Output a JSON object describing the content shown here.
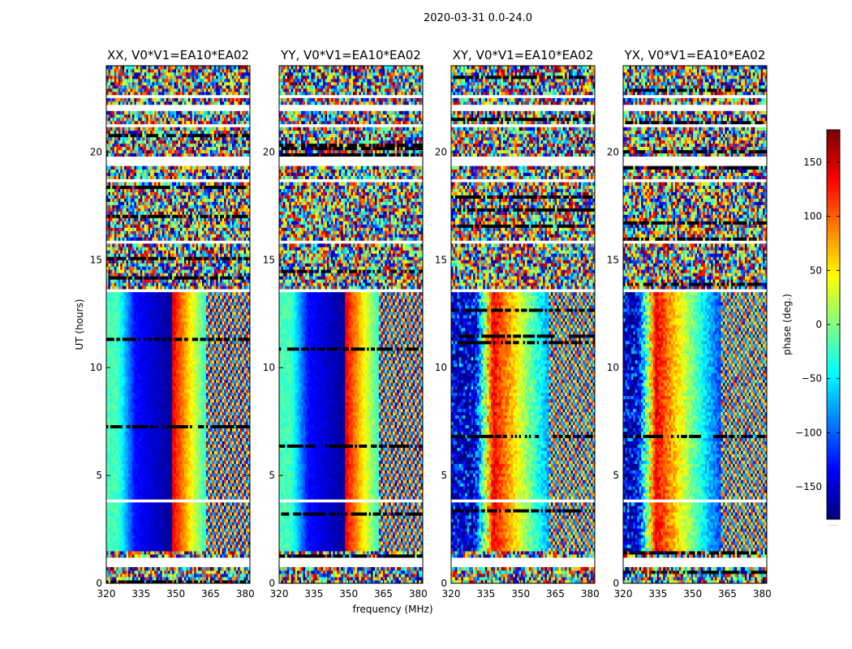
{
  "figure": {
    "suptitle": "2020-03-31 0.0-24.0",
    "xlabel": "frequency (MHz)",
    "ylabel": "UT (hours)",
    "colorbar_label": "phase (deg.)",
    "colorbar_footnote": "......",
    "colormap": "jet"
  },
  "chart_data": [
    {
      "type": "heatmap",
      "title": "XX, V0*V1=EA10*EA02",
      "pattern": "parallel",
      "xlim": [
        320,
        382
      ],
      "ylim": [
        0,
        24
      ],
      "xticks": [
        320,
        335,
        350,
        365,
        380
      ],
      "yticks": [
        0,
        5,
        10,
        15,
        20
      ],
      "zlim": [
        -180,
        180
      ],
      "description_values": "smooth phase gradient in frequency from -150 deg near 335-345 MHz to +150 deg near 350 MHz, noisy above 363 MHz and outside 1.5-13.5 h"
    },
    {
      "type": "heatmap",
      "title": "YY, V0*V1=EA10*EA02",
      "pattern": "parallel",
      "xlim": [
        320,
        382
      ],
      "ylim": [
        0,
        24
      ],
      "xticks": [
        320,
        335,
        350,
        365,
        380
      ],
      "yticks": [
        0,
        5,
        10,
        15,
        20
      ],
      "zlim": [
        -180,
        180
      ]
    },
    {
      "type": "heatmap",
      "title": "XY, V0*V1=EA10*EA02",
      "pattern": "cross",
      "xlim": [
        320,
        382
      ],
      "ylim": [
        0,
        24
      ],
      "xticks": [
        320,
        335,
        350,
        365,
        380
      ],
      "yticks": [
        0,
        5,
        10,
        15,
        20
      ],
      "zlim": [
        -180,
        180
      ]
    },
    {
      "type": "heatmap",
      "title": "YX, V0*V1=EA10*EA02",
      "pattern": "cross2",
      "xlim": [
        320,
        382
      ],
      "ylim": [
        0,
        24
      ],
      "xticks": [
        320,
        335,
        350,
        365,
        380
      ],
      "yticks": [
        0,
        5,
        10,
        15,
        20
      ],
      "zlim": [
        -180,
        180
      ]
    }
  ],
  "colorbar": {
    "zlim": [
      -180,
      180
    ],
    "ticks": [
      -150,
      -100,
      -50,
      0,
      50,
      100,
      150
    ],
    "tick_labels": [
      "−150",
      "−100",
      "−50",
      "0",
      "50",
      "100",
      "150"
    ]
  }
}
